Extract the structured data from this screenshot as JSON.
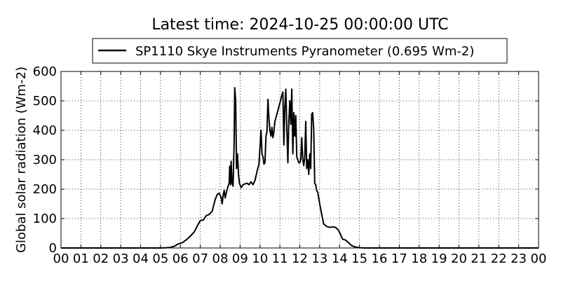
{
  "chart_data": {
    "type": "line",
    "title": "Latest time: 2024-10-25 00:00:00 UTC",
    "xlabel": "",
    "ylabel": "Global solar radiation (Wm-2)",
    "xlim": [
      0,
      24
    ],
    "ylim": [
      0,
      600
    ],
    "grid": true,
    "legend_position": "top-center",
    "x_tick_labels": [
      "00",
      "01",
      "02",
      "03",
      "04",
      "05",
      "06",
      "07",
      "08",
      "09",
      "10",
      "11",
      "12",
      "13",
      "14",
      "15",
      "16",
      "17",
      "18",
      "19",
      "20",
      "21",
      "22",
      "23",
      "00"
    ],
    "y_tick_labels": [
      "0",
      "100",
      "200",
      "300",
      "400",
      "500",
      "600"
    ],
    "series": [
      {
        "name": "SP1110 Skye Instruments Pyranometer (0.695 Wm-2)",
        "color": "#000000",
        "points": [
          [
            0,
            0
          ],
          [
            5.0,
            0
          ],
          [
            5.3,
            1
          ],
          [
            5.5,
            2
          ],
          [
            5.7,
            6
          ],
          [
            5.9,
            14
          ],
          [
            6.1,
            18
          ],
          [
            6.3,
            28
          ],
          [
            6.5,
            40
          ],
          [
            6.7,
            55
          ],
          [
            6.85,
            75
          ],
          [
            7.0,
            93
          ],
          [
            7.15,
            95
          ],
          [
            7.3,
            110
          ],
          [
            7.45,
            114
          ],
          [
            7.6,
            125
          ],
          [
            7.75,
            165
          ],
          [
            7.85,
            182
          ],
          [
            7.95,
            186
          ],
          [
            8.05,
            172
          ],
          [
            8.1,
            150
          ],
          [
            8.15,
            180
          ],
          [
            8.2,
            196
          ],
          [
            8.25,
            170
          ],
          [
            8.35,
            200
          ],
          [
            8.45,
            220
          ],
          [
            8.48,
            278
          ],
          [
            8.52,
            215
          ],
          [
            8.55,
            295
          ],
          [
            8.6,
            220
          ],
          [
            8.65,
            210
          ],
          [
            8.7,
            360
          ],
          [
            8.73,
            545
          ],
          [
            8.78,
            500
          ],
          [
            8.82,
            270
          ],
          [
            8.87,
            320
          ],
          [
            8.92,
            250
          ],
          [
            8.97,
            220
          ],
          [
            9.05,
            205
          ],
          [
            9.15,
            215
          ],
          [
            9.25,
            218
          ],
          [
            9.35,
            220
          ],
          [
            9.45,
            215
          ],
          [
            9.55,
            225
          ],
          [
            9.65,
            215
          ],
          [
            9.75,
            230
          ],
          [
            9.85,
            260
          ],
          [
            9.95,
            285
          ],
          [
            10.05,
            400
          ],
          [
            10.1,
            320
          ],
          [
            10.15,
            310
          ],
          [
            10.2,
            285
          ],
          [
            10.25,
            290
          ],
          [
            10.3,
            380
          ],
          [
            10.35,
            395
          ],
          [
            10.4,
            505
          ],
          [
            10.45,
            440
          ],
          [
            10.5,
            400
          ],
          [
            10.55,
            380
          ],
          [
            10.6,
            410
          ],
          [
            10.65,
            375
          ],
          [
            10.7,
            395
          ],
          [
            10.75,
            430
          ],
          [
            10.85,
            455
          ],
          [
            10.95,
            480
          ],
          [
            11.05,
            505
          ],
          [
            11.1,
            520
          ],
          [
            11.15,
            530
          ],
          [
            11.2,
            350
          ],
          [
            11.25,
            480
          ],
          [
            11.3,
            540
          ],
          [
            11.35,
            400
          ],
          [
            11.4,
            290
          ],
          [
            11.45,
            430
          ],
          [
            11.5,
            500
          ],
          [
            11.55,
            420
          ],
          [
            11.6,
            540
          ],
          [
            11.65,
            320
          ],
          [
            11.7,
            460
          ],
          [
            11.75,
            380
          ],
          [
            11.8,
            450
          ],
          [
            11.85,
            310
          ],
          [
            11.9,
            300
          ],
          [
            11.95,
            290
          ],
          [
            12.0,
            290
          ],
          [
            12.05,
            300
          ],
          [
            12.1,
            375
          ],
          [
            12.15,
            300
          ],
          [
            12.2,
            280
          ],
          [
            12.25,
            310
          ],
          [
            12.3,
            430
          ],
          [
            12.35,
            270
          ],
          [
            12.4,
            300
          ],
          [
            12.45,
            250
          ],
          [
            12.5,
            320
          ],
          [
            12.55,
            270
          ],
          [
            12.6,
            455
          ],
          [
            12.65,
            460
          ],
          [
            12.7,
            400
          ],
          [
            12.75,
            220
          ],
          [
            12.8,
            215
          ],
          [
            12.85,
            195
          ],
          [
            12.9,
            190
          ],
          [
            13.0,
            150
          ],
          [
            13.1,
            115
          ],
          [
            13.2,
            82
          ],
          [
            13.35,
            73
          ],
          [
            13.5,
            70
          ],
          [
            13.65,
            72
          ],
          [
            13.8,
            70
          ],
          [
            13.95,
            60
          ],
          [
            14.05,
            45
          ],
          [
            14.15,
            30
          ],
          [
            14.3,
            27
          ],
          [
            14.45,
            18
          ],
          [
            14.6,
            8
          ],
          [
            14.8,
            3
          ],
          [
            15.0,
            1
          ],
          [
            15.3,
            0
          ],
          [
            24,
            0
          ]
        ]
      }
    ]
  }
}
